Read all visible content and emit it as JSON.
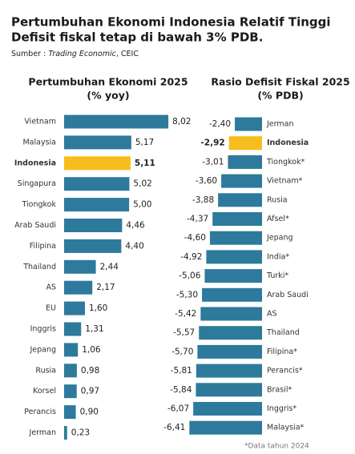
{
  "title": [
    "Pertumbuhan Ekonomi Indonesia Relatif Tinggi",
    "Defisit fiskal tetap di bawah 3% PDB."
  ],
  "source": [
    "Sumber : ",
    "Trading Economic",
    ", CEIC"
  ],
  "note": "*Data tahun 2024",
  "chart_data": [
    {
      "type": "hbar",
      "title": "Pertumbuhan Ekonomi 2025",
      "subtitle": "(% yoy)",
      "categories": [
        "Vietnam",
        "Malaysia",
        "Indonesia",
        "Singapura",
        "Tiongkok",
        "Arab Saudi",
        "Filipina",
        "Thailand",
        "AS",
        "EU",
        "Inggris",
        "Jepang",
        "Rusia",
        "Korsel",
        "Perancis",
        "Jerman"
      ],
      "values": [
        8.02,
        5.17,
        5.11,
        5.02,
        5.0,
        4.46,
        4.4,
        2.44,
        2.17,
        1.6,
        1.31,
        1.06,
        0.98,
        0.97,
        0.9,
        0.23
      ],
      "value_labels": [
        "8,02",
        "5,17",
        "5,11",
        "5,02",
        "5,00",
        "4,46",
        "4,40",
        "2,44",
        "2,17",
        "1,60",
        "1,31",
        "1,06",
        "0,98",
        "0,97",
        "0,90",
        "0,23"
      ],
      "color": "#2d7a9c",
      "colors": [
        "#2d7a9c",
        "#2d7a9c",
        "#f6bd1c",
        "#2d7a9c",
        "#2d7a9c",
        "#2d7a9c",
        "#2d7a9c",
        "#2d7a9c",
        "#2d7a9c",
        "#2d7a9c",
        "#2d7a9c",
        "#2d7a9c",
        "#2d7a9c",
        "#2d7a9c",
        "#2d7a9c",
        "#2d7a9c"
      ],
      "xlim": [
        0,
        9
      ]
    },
    {
      "type": "hbar",
      "title": "Rasio Defisit Fiskal 2025",
      "subtitle": "(% PDB)",
      "categories": [
        "Jerman",
        "Indonesia",
        "Tiongkok*",
        "Vietnam*",
        "Rusia",
        "Afsel*",
        "Jepang",
        "India*",
        "Turki*",
        "Arab Saudi",
        "AS",
        "Thailand",
        "Filipina*",
        "Perancis*",
        "Brasil*",
        "Inggris*",
        "Malaysia*"
      ],
      "values": [
        -2.4,
        -2.92,
        -3.01,
        -3.6,
        -3.88,
        -4.37,
        -4.6,
        -4.92,
        -5.06,
        -5.3,
        -5.42,
        -5.57,
        -5.7,
        -5.81,
        -5.84,
        -6.07,
        -6.41
      ],
      "value_labels": [
        "-2,40",
        "-2,92",
        "-3,01",
        "-3,60",
        "-3,88",
        "-4,37",
        "-4,60",
        "-4,92",
        "-5,06",
        "-5,30",
        "-5,42",
        "-5,57",
        "-5,70",
        "-5,81",
        "-5,84",
        "-6,07",
        "-6,41"
      ],
      "color": "#2d7a9c",
      "colors": [
        "#2d7a9c",
        "#f6bd1c",
        "#2d7a9c",
        "#2d7a9c",
        "#2d7a9c",
        "#2d7a9c",
        "#2d7a9c",
        "#2d7a9c",
        "#2d7a9c",
        "#2d7a9c",
        "#2d7a9c",
        "#2d7a9c",
        "#2d7a9c",
        "#2d7a9c",
        "#2d7a9c",
        "#2d7a9c",
        "#2d7a9c"
      ],
      "xlim": [
        -7,
        0
      ]
    }
  ]
}
